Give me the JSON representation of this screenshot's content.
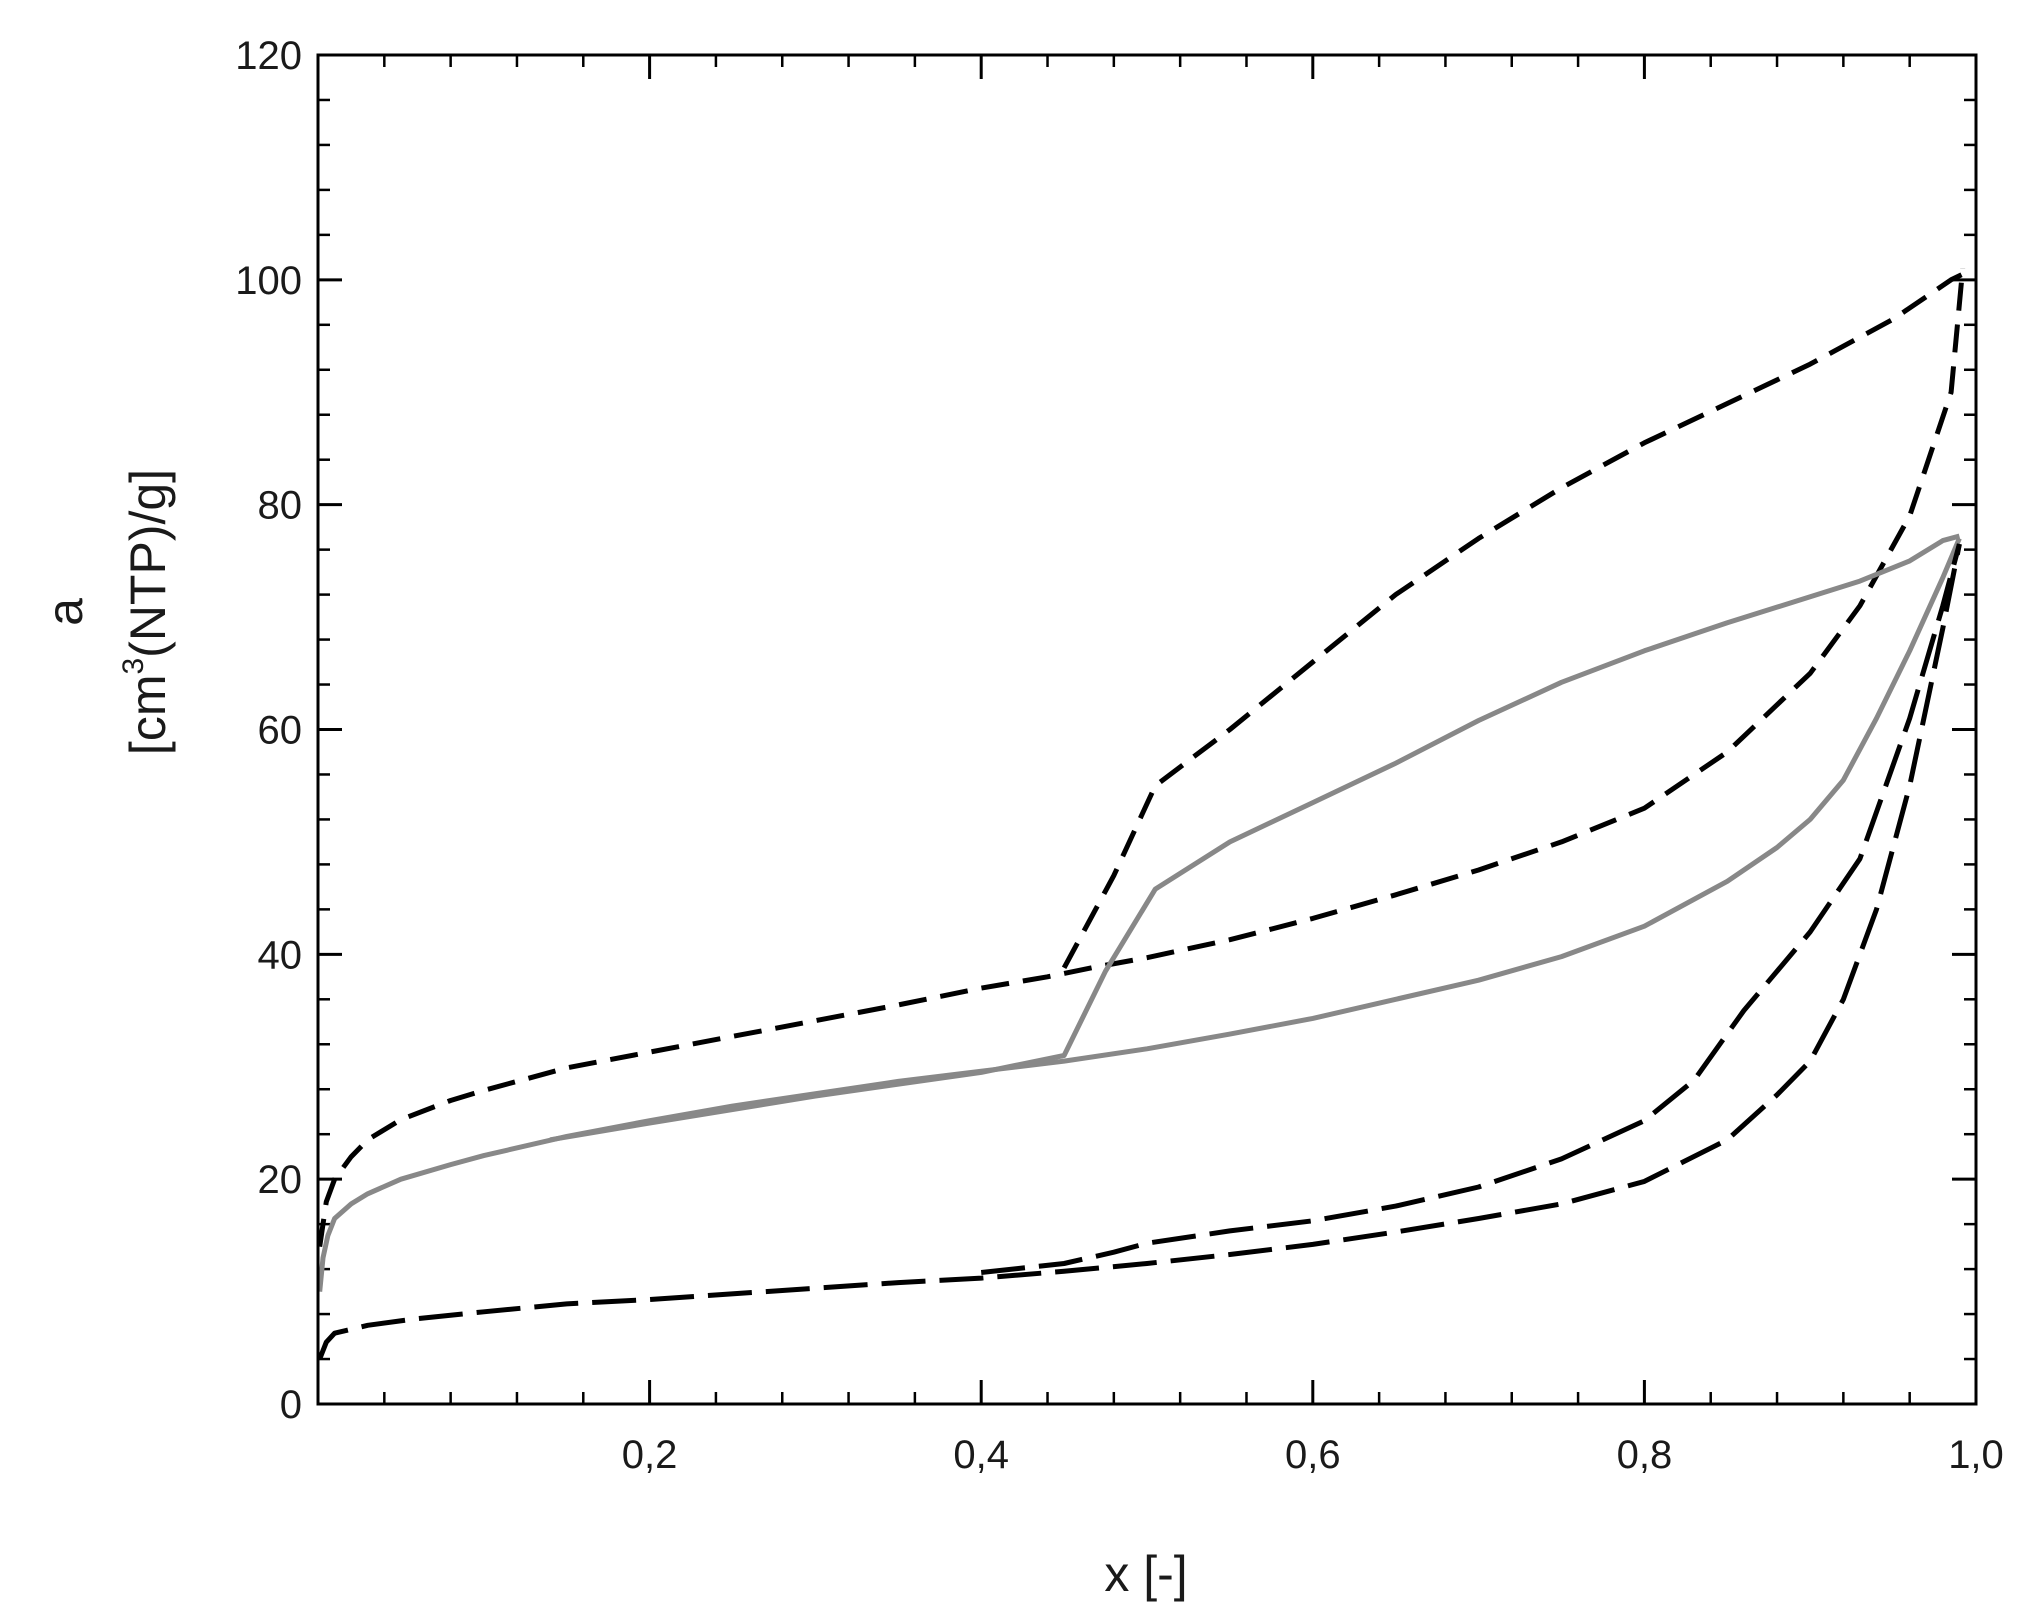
{
  "chart_data": {
    "type": "line",
    "xlabel": "x [-]",
    "ylabel": {
      "top": "a",
      "prefix": "[cm",
      "superscript": "3",
      "suffix": "(NTP)/g]"
    },
    "xlim": [
      0,
      1.0
    ],
    "ylim": [
      0,
      120
    ],
    "x_ticks": [
      {
        "value": 0.2,
        "label": "0,2"
      },
      {
        "value": 0.4,
        "label": "0,4"
      },
      {
        "value": 0.6,
        "label": "0,6"
      },
      {
        "value": 0.8,
        "label": "0,8"
      },
      {
        "value": 1.0,
        "label": "1,0"
      }
    ],
    "y_ticks": [
      {
        "value": 0,
        "label": "0"
      },
      {
        "value": 20,
        "label": "20"
      },
      {
        "value": 40,
        "label": "40"
      },
      {
        "value": 60,
        "label": "60"
      },
      {
        "value": 80,
        "label": "80"
      },
      {
        "value": 100,
        "label": "100"
      },
      {
        "value": 120,
        "label": "120"
      }
    ],
    "x_minor_step": 0.04,
    "y_minor_step": 4,
    "grid": false,
    "legend": "none",
    "series": [
      {
        "style": "dashed",
        "color": "#000000",
        "x": [
          0.001,
          0.005,
          0.01,
          0.02,
          0.03,
          0.05,
          0.08,
          0.1,
          0.15,
          0.2,
          0.25,
          0.3,
          0.35,
          0.4,
          0.44,
          0.47,
          0.5,
          0.55,
          0.6,
          0.65,
          0.7,
          0.75,
          0.8,
          0.85,
          0.9,
          0.93,
          0.96,
          0.985,
          0.992
        ],
        "y": [
          14,
          18,
          20,
          22,
          23.5,
          25.3,
          27,
          27.9,
          29.9,
          31.3,
          32.7,
          34.1,
          35.5,
          37,
          38,
          38.9,
          39.7,
          41.3,
          43.2,
          45.3,
          47.5,
          50,
          53,
          58,
          65,
          71,
          79,
          90,
          101
        ]
      },
      {
        "style": "dashed",
        "color": "#000000",
        "x": [
          0.45,
          0.48,
          0.505,
          0.55,
          0.6,
          0.65,
          0.7,
          0.75,
          0.8,
          0.85,
          0.9,
          0.95,
          0.97,
          0.985,
          0.992
        ],
        "y": [
          38.8,
          47,
          55,
          60,
          66,
          72,
          77,
          81.5,
          85.5,
          89,
          92.5,
          96.5,
          98.5,
          100,
          100.5
        ]
      },
      {
        "style": "solid",
        "color": "#888888",
        "x": [
          0.001,
          0.003,
          0.006,
          0.01,
          0.02,
          0.03,
          0.05,
          0.08,
          0.1,
          0.15,
          0.2,
          0.25,
          0.3,
          0.35,
          0.4,
          0.45,
          0.5,
          0.55,
          0.6,
          0.65,
          0.7,
          0.75,
          0.8,
          0.85,
          0.88,
          0.9,
          0.92,
          0.94,
          0.96,
          0.98,
          0.99
        ],
        "y": [
          10,
          13,
          15,
          16.5,
          17.8,
          18.7,
          20,
          21.3,
          22.1,
          23.8,
          25.2,
          26.5,
          27.6,
          28.7,
          29.6,
          30.5,
          31.6,
          32.9,
          34.3,
          36,
          37.7,
          39.8,
          42.5,
          46.5,
          49.5,
          52,
          55.5,
          61,
          67,
          73.5,
          77
        ]
      },
      {
        "style": "solid",
        "color": "#888888",
        "x": [
          0.14,
          0.2,
          0.3,
          0.4,
          0.45,
          0.475,
          0.505,
          0.55,
          0.6,
          0.65,
          0.7,
          0.75,
          0.8,
          0.85,
          0.9,
          0.93,
          0.96,
          0.98,
          0.99
        ],
        "y": [
          23.5,
          25,
          27.4,
          29.5,
          31,
          38.5,
          45.8,
          50,
          53.5,
          57,
          60.8,
          64.2,
          67,
          69.5,
          71.8,
          73.2,
          75,
          76.8,
          77.2
        ]
      },
      {
        "style": "longdash",
        "color": "#000000",
        "x": [
          0.001,
          0.005,
          0.01,
          0.03,
          0.06,
          0.1,
          0.15,
          0.2,
          0.3,
          0.35,
          0.4,
          0.45,
          0.5,
          0.55,
          0.6,
          0.65,
          0.7,
          0.75,
          0.8,
          0.85,
          0.88,
          0.9,
          0.92,
          0.94,
          0.96,
          0.98,
          0.99
        ],
        "y": [
          4,
          5.5,
          6.3,
          7,
          7.6,
          8.2,
          8.9,
          9.3,
          10.3,
          10.8,
          11.2,
          11.8,
          12.5,
          13.3,
          14.2,
          15.3,
          16.5,
          17.8,
          19.8,
          23.5,
          27.5,
          30.5,
          36,
          44,
          55,
          69,
          76.5
        ]
      },
      {
        "style": "longdash",
        "color": "#000000",
        "x": [
          0.4,
          0.45,
          0.48,
          0.5,
          0.55,
          0.6,
          0.65,
          0.7,
          0.75,
          0.8,
          0.83,
          0.86,
          0.9,
          0.93,
          0.96,
          0.98,
          0.99
        ],
        "y": [
          11.7,
          12.5,
          13.5,
          14.3,
          15.4,
          16.3,
          17.6,
          19.3,
          21.8,
          25.2,
          28.8,
          35,
          42,
          48.5,
          61,
          71,
          76.5
        ]
      }
    ]
  }
}
